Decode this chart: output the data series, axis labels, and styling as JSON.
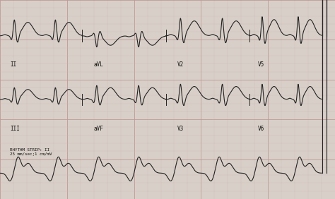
{
  "bg_color": "#d8d0c8",
  "grid_major_color": "#c09898",
  "grid_minor_color": "#d0b8b8",
  "ecg_color": "#222222",
  "line_width": 0.8,
  "figsize": [
    4.74,
    2.82
  ],
  "dpi": 100,
  "labels": {
    "row0": [
      "II",
      "aVL",
      "V2",
      "V5"
    ],
    "row1": [
      "III",
      "aVF",
      "V3",
      "V6"
    ],
    "rhythm": "RHYTHM STRIP: II\n25 mm/sec;1 cm/mV"
  }
}
